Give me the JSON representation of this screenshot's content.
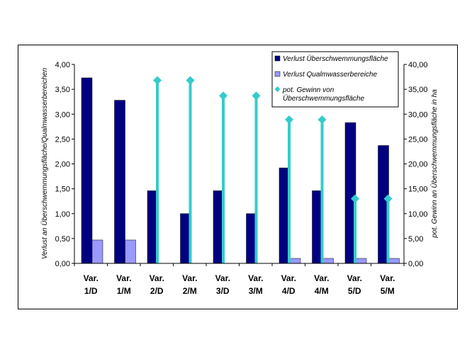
{
  "chart_data": {
    "type": "bar",
    "categories": [
      [
        "Var.",
        "1/D"
      ],
      [
        "Var.",
        "1/M"
      ],
      [
        "Var.",
        "2/D"
      ],
      [
        "Var.",
        "2/M"
      ],
      [
        "Var.",
        "3/D"
      ],
      [
        "Var.",
        "3/M"
      ],
      [
        "Var.",
        "4/D"
      ],
      [
        "Var.",
        "4/M"
      ],
      [
        "Var.",
        "5/D"
      ],
      [
        "Var.",
        "5/M"
      ]
    ],
    "series": [
      {
        "name": "Verlust Überschwemmungsfläche",
        "kind": "bar",
        "axis": "left",
        "color": "#000080",
        "values": [
          3.73,
          3.28,
          1.46,
          1.0,
          1.46,
          1.0,
          1.92,
          1.46,
          2.83,
          2.37
        ]
      },
      {
        "name": "Verlust Qualmwasserbereiche",
        "kind": "bar",
        "axis": "left",
        "color": "#9999ff",
        "values": [
          0.47,
          0.47,
          0,
          0,
          0,
          0,
          0.1,
          0.1,
          0.1,
          0.1
        ]
      },
      {
        "name_lines": [
          "pot. Gewinn von",
          "Überschwemmungsfläche"
        ],
        "kind": "dropline-marker",
        "axis": "right",
        "color": "#33cccc",
        "values": [
          null,
          null,
          36.8,
          36.8,
          33.7,
          33.7,
          28.9,
          28.9,
          13.0,
          13.0
        ]
      }
    ],
    "y_left": {
      "label": "Verlust an Überschwemmungsfläche/Qualmwasserbereichen",
      "min": 0,
      "max": 4,
      "step": 0.5,
      "tick_labels": [
        "0,00",
        "0,50",
        "1,00",
        "1,50",
        "2,00",
        "2,50",
        "3,00",
        "3,50",
        "4,00"
      ]
    },
    "y_right": {
      "label": "pot. Gewinn an Überschwemmungsfläche in ha",
      "min": 0,
      "max": 40,
      "step": 5,
      "tick_labels": [
        "0,00",
        "5,00",
        "10,00",
        "15,00",
        "20,00",
        "25,00",
        "30,00",
        "35,00",
        "40,00"
      ]
    },
    "grid": false,
    "legend_position": "top-right"
  }
}
